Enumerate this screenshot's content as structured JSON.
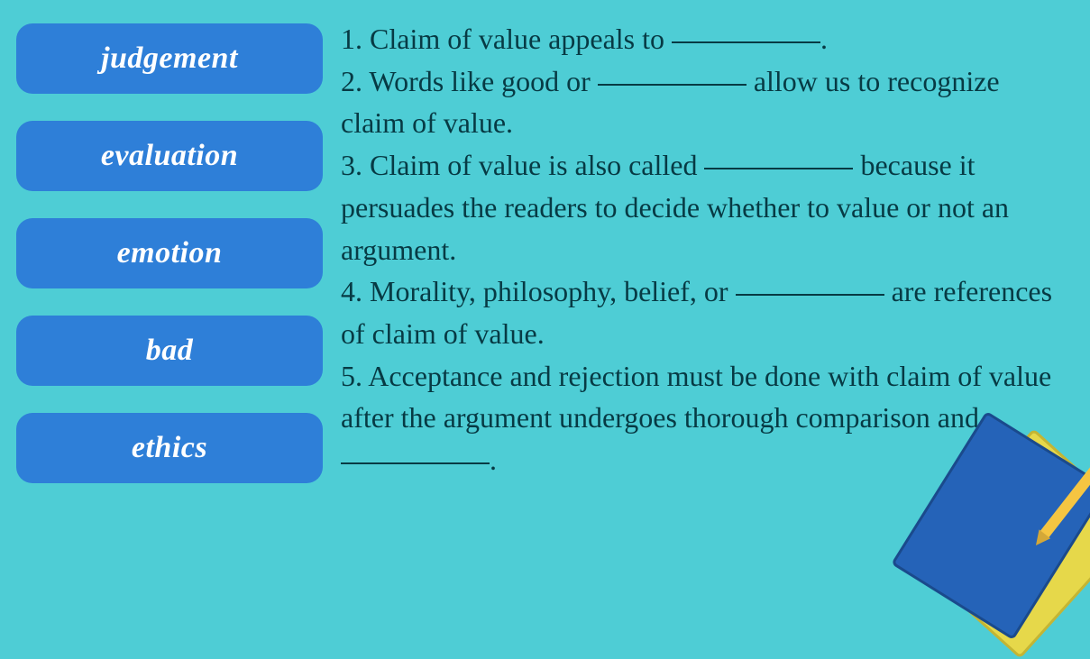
{
  "colors": {
    "background": "#4ecdd5",
    "button_bg": "#2e7fd8",
    "button_text": "#ffffff",
    "question_text": "#073a44",
    "book1": "#2563b8",
    "book2": "#e6d84a",
    "pencil": "#f5c542"
  },
  "typography": {
    "button_fontsize": 34,
    "button_weight": "bold",
    "question_fontsize": 32,
    "font_family": "Georgia, serif"
  },
  "word_bank": [
    "judgement",
    "evaluation",
    "emotion",
    "bad",
    "ethics"
  ],
  "questions": [
    {
      "number": "1",
      "prefix": "Claim of value appeals to ",
      "suffix": "."
    },
    {
      "number": "2",
      "prefix": "Words like good or ",
      "suffix": " allow us to recognize claim of value."
    },
    {
      "number": "3",
      "prefix": "Claim of value is also called ",
      "suffix": " because it persuades the readers to decide whether to value or not an argument."
    },
    {
      "number": "4",
      "prefix": "Morality, philosophy, belief, or ",
      "suffix": " are references of claim of value."
    },
    {
      "number": "5",
      "prefix": "Acceptance and rejection must be done with claim of value after the argument undergoes thorough comparison and ",
      "suffix": "."
    }
  ]
}
